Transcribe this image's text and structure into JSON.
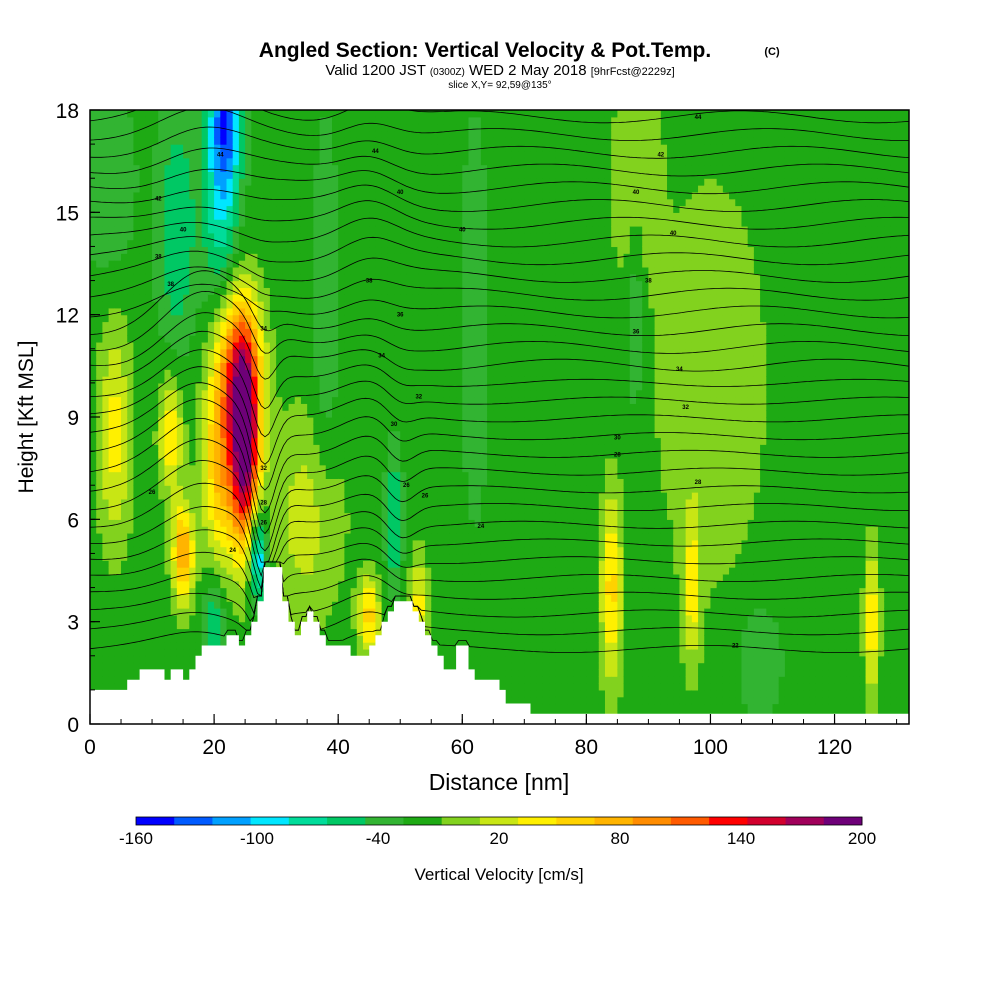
{
  "header": {
    "title": "Angled Section: Vertical Velocity & Pot.Temp.",
    "title_unit": "(C)",
    "valid_prefix": "Valid 1200 JST",
    "valid_utc": "(0300Z)",
    "valid_date": "WED 2 May 2018",
    "forecast": "[9hrFcst@2229z]",
    "slice": "slice X,Y= 92,59@135°"
  },
  "chart_data": {
    "type": "heatmap",
    "xlabel": "Distance [nm]",
    "ylabel": "Height [Kft MSL]",
    "xlim": [
      0,
      132
    ],
    "ylim": [
      0,
      18
    ],
    "x_ticks": [
      0,
      20,
      40,
      60,
      80,
      100,
      120
    ],
    "y_ticks": [
      0,
      3,
      6,
      9,
      12,
      15,
      18
    ],
    "colorbar": {
      "label": "Vertical Velocity [cm/s]",
      "range": [
        -160,
        200
      ],
      "step": 20,
      "tick_labels": [
        "-160",
        "-100",
        "-40",
        "20",
        "80",
        "140",
        "200"
      ],
      "colors": [
        "#0000ff",
        "#005aff",
        "#00a0ff",
        "#00e6ff",
        "#00dc9a",
        "#00c864",
        "#32b432",
        "#1eaa14",
        "#82d21e",
        "#c8e614",
        "#fff000",
        "#ffd200",
        "#ffb400",
        "#ff8c00",
        "#ff5a00",
        "#ff0000",
        "#d2002d",
        "#a0005a",
        "#6e0078"
      ]
    },
    "background_velocity": -10,
    "velocity_features": [
      {
        "x": 25,
        "y": 8.0,
        "sx": 1.6,
        "sy": 2.0,
        "value": 200
      },
      {
        "x": 24,
        "y": 10.5,
        "sx": 2.5,
        "sy": 1.6,
        "value": 120
      },
      {
        "x": 21,
        "y": 7.5,
        "sx": 2.0,
        "sy": 2.0,
        "value": 80
      },
      {
        "x": 15,
        "y": 5.0,
        "sx": 1.2,
        "sy": 1.0,
        "value": 100
      },
      {
        "x": 13,
        "y": 8.5,
        "sx": 1.3,
        "sy": 1.2,
        "value": 60
      },
      {
        "x": 4,
        "y": 8.5,
        "sx": 1.8,
        "sy": 2.2,
        "value": 50
      },
      {
        "x": 35,
        "y": 6.0,
        "sx": 4.0,
        "sy": 2.2,
        "value": 30
      },
      {
        "x": 45,
        "y": 3.2,
        "sx": 1.2,
        "sy": 0.8,
        "value": 70
      },
      {
        "x": 53,
        "y": 3.5,
        "sx": 1.0,
        "sy": 1.0,
        "value": 50
      },
      {
        "x": 84,
        "y": 4.0,
        "sx": 1.2,
        "sy": 2.0,
        "value": 70
      },
      {
        "x": 97,
        "y": 4.0,
        "sx": 1.0,
        "sy": 1.5,
        "value": 50
      },
      {
        "x": 126,
        "y": 3.0,
        "sx": 0.8,
        "sy": 1.5,
        "value": 60
      },
      {
        "x": 88,
        "y": 16.0,
        "sx": 2.5,
        "sy": 2.0,
        "value": 30
      },
      {
        "x": 100,
        "y": 10.0,
        "sx": 6.0,
        "sy": 4.0,
        "value": 20
      },
      {
        "x": 22,
        "y": 18.0,
        "sx": 1.8,
        "sy": 1.5,
        "value": -110
      },
      {
        "x": 21,
        "y": 15.5,
        "sx": 2.0,
        "sy": 2.2,
        "value": -80
      },
      {
        "x": 14,
        "y": 14.5,
        "sx": 2.2,
        "sy": 2.5,
        "value": -60
      },
      {
        "x": 3,
        "y": 16.0,
        "sx": 3.0,
        "sy": 2.0,
        "value": -40
      },
      {
        "x": 27,
        "y": 5.0,
        "sx": 1.0,
        "sy": 1.0,
        "value": -120
      },
      {
        "x": 20,
        "y": 3.0,
        "sx": 1.2,
        "sy": 1.0,
        "value": -60
      },
      {
        "x": 49,
        "y": 6.0,
        "sx": 1.0,
        "sy": 1.5,
        "value": -60
      },
      {
        "x": 38,
        "y": 12.0,
        "sx": 1.5,
        "sy": 4.0,
        "value": -40
      },
      {
        "x": 62,
        "y": 12.0,
        "sx": 1.5,
        "sy": 4.0,
        "value": -40
      },
      {
        "x": 88,
        "y": 13.0,
        "sx": 1.0,
        "sy": 3.0,
        "value": -40
      },
      {
        "x": 108,
        "y": 1.8,
        "sx": 2.5,
        "sy": 1.2,
        "value": -40
      },
      {
        "x": 75,
        "y": 6.0,
        "sx": 6.0,
        "sy": 3.0,
        "value": -20
      }
    ],
    "terrain": [
      [
        0,
        1.0
      ],
      [
        6,
        1.0
      ],
      [
        6,
        1.3
      ],
      [
        8,
        1.3
      ],
      [
        8,
        1.6
      ],
      [
        12,
        1.6
      ],
      [
        12,
        1.3
      ],
      [
        13,
        1.3
      ],
      [
        13,
        1.6
      ],
      [
        15,
        1.6
      ],
      [
        15,
        1.3
      ],
      [
        16,
        1.3
      ],
      [
        16,
        1.6
      ],
      [
        17,
        1.6
      ],
      [
        17,
        2.0
      ],
      [
        18,
        2.0
      ],
      [
        18,
        2.3
      ],
      [
        22,
        2.3
      ],
      [
        22,
        2.6
      ],
      [
        24,
        2.6
      ],
      [
        24,
        2.3
      ],
      [
        25,
        2.3
      ],
      [
        25,
        2.6
      ],
      [
        26,
        2.6
      ],
      [
        26,
        3.0
      ],
      [
        27,
        3.0
      ],
      [
        27,
        3.6
      ],
      [
        28,
        3.6
      ],
      [
        28,
        4.6
      ],
      [
        31,
        4.6
      ],
      [
        31,
        3.6
      ],
      [
        32,
        3.6
      ],
      [
        32,
        3.0
      ],
      [
        33,
        3.0
      ],
      [
        33,
        2.6
      ],
      [
        34,
        2.6
      ],
      [
        34,
        3.0
      ],
      [
        35,
        3.0
      ],
      [
        35,
        3.3
      ],
      [
        36,
        3.3
      ],
      [
        36,
        3.0
      ],
      [
        37,
        3.0
      ],
      [
        37,
        2.6
      ],
      [
        38,
        2.6
      ],
      [
        38,
        2.3
      ],
      [
        42,
        2.3
      ],
      [
        42,
        2.0
      ],
      [
        45,
        2.0
      ],
      [
        45,
        2.3
      ],
      [
        46,
        2.3
      ],
      [
        46,
        2.6
      ],
      [
        47,
        2.6
      ],
      [
        47,
        3.0
      ],
      [
        48,
        3.0
      ],
      [
        48,
        3.3
      ],
      [
        49,
        3.3
      ],
      [
        49,
        3.6
      ],
      [
        52,
        3.6
      ],
      [
        52,
        3.3
      ],
      [
        53,
        3.3
      ],
      [
        53,
        3.0
      ],
      [
        54,
        3.0
      ],
      [
        54,
        2.6
      ],
      [
        55,
        2.6
      ],
      [
        55,
        2.3
      ],
      [
        56,
        2.3
      ],
      [
        56,
        2.0
      ],
      [
        57,
        2.0
      ],
      [
        57,
        1.6
      ],
      [
        59,
        1.6
      ],
      [
        59,
        2.3
      ],
      [
        61,
        2.3
      ],
      [
        61,
        1.6
      ],
      [
        62,
        1.6
      ],
      [
        62,
        1.3
      ],
      [
        66,
        1.3
      ],
      [
        66,
        1.0
      ],
      [
        67,
        1.0
      ],
      [
        67,
        0.6
      ],
      [
        71,
        0.6
      ],
      [
        71,
        0.3
      ],
      [
        132,
        0.3
      ]
    ],
    "contour_labels": [
      {
        "text": "44",
        "x": 21,
        "y": 16.7
      },
      {
        "text": "44",
        "x": 46,
        "y": 16.8
      },
      {
        "text": "44",
        "x": 98,
        "y": 17.8
      },
      {
        "text": "42",
        "x": 92,
        "y": 16.7
      },
      {
        "text": "42",
        "x": 11,
        "y": 15.4
      },
      {
        "text": "40",
        "x": 50,
        "y": 15.6
      },
      {
        "text": "40",
        "x": 88,
        "y": 15.6
      },
      {
        "text": "40",
        "x": 15,
        "y": 14.5
      },
      {
        "text": "40",
        "x": 60,
        "y": 14.5
      },
      {
        "text": "40",
        "x": 94,
        "y": 14.4
      },
      {
        "text": "38",
        "x": 11,
        "y": 13.7
      },
      {
        "text": "38",
        "x": 45,
        "y": 13.0
      },
      {
        "text": "38",
        "x": 90,
        "y": 13.0
      },
      {
        "text": "38",
        "x": 13,
        "y": 12.9
      },
      {
        "text": "36",
        "x": 50,
        "y": 12.0
      },
      {
        "text": "36",
        "x": 88,
        "y": 11.5
      },
      {
        "text": "34",
        "x": 28,
        "y": 11.6
      },
      {
        "text": "34",
        "x": 47,
        "y": 10.8
      },
      {
        "text": "34",
        "x": 95,
        "y": 10.4
      },
      {
        "text": "32",
        "x": 53,
        "y": 9.6
      },
      {
        "text": "32",
        "x": 96,
        "y": 9.3
      },
      {
        "text": "30",
        "x": 49,
        "y": 8.8
      },
      {
        "text": "30",
        "x": 85,
        "y": 8.4
      },
      {
        "text": "28",
        "x": 85,
        "y": 7.9
      },
      {
        "text": "28",
        "x": 98,
        "y": 7.1
      },
      {
        "text": "26",
        "x": 51,
        "y": 7.0
      },
      {
        "text": "26",
        "x": 54,
        "y": 6.7
      },
      {
        "text": "26",
        "x": 10,
        "y": 6.8
      },
      {
        "text": "24",
        "x": 63,
        "y": 5.8
      },
      {
        "text": "24",
        "x": 23,
        "y": 5.1
      },
      {
        "text": "22",
        "x": 104,
        "y": 2.3
      },
      {
        "text": "32",
        "x": 28,
        "y": 7.5
      },
      {
        "text": "28",
        "x": 28,
        "y": 6.5
      },
      {
        "text": "26",
        "x": 28,
        "y": 5.9
      }
    ]
  }
}
